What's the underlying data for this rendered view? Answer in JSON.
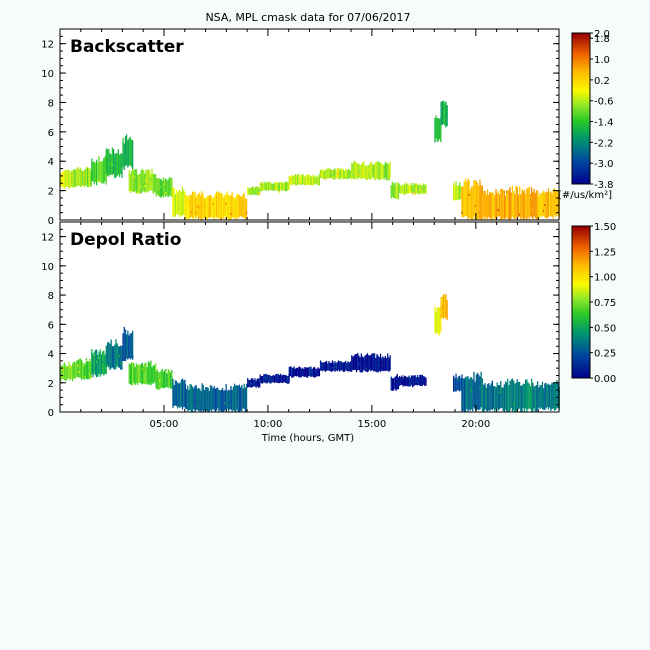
{
  "chart_data": {
    "type": "heatmap",
    "title": "NSA, MPL cmask data for 07/06/2017",
    "xlabel": "Time (hours, GMT)",
    "x_ticks": [
      {
        "value": 5,
        "label": "05:00"
      },
      {
        "value": 10,
        "label": "10:00"
      },
      {
        "value": 15,
        "label": "15:00"
      },
      {
        "value": 20,
        "label": "20:00"
      }
    ],
    "xlim": [
      0,
      24
    ],
    "ylim": [
      0,
      13
    ],
    "y_ticks": [
      0,
      2,
      4,
      6,
      8,
      10,
      12
    ],
    "panels": [
      {
        "label": "Backscatter",
        "colorbar": {
          "range": [
            -3.8,
            2.0
          ],
          "labels": [
            "2.0",
            "1.8",
            "1.0",
            "0.2",
            "-0.6",
            "-1.4",
            "-2.2",
            "-3.0",
            "-3.8"
          ],
          "label_values": [
            2.0,
            1.8,
            1.0,
            0.2,
            -0.6,
            -1.4,
            -2.2,
            -3.0,
            -3.8
          ],
          "unit_label": "[#/us/km²]"
        }
      },
      {
        "label": "Depol Ratio",
        "colorbar": {
          "range": [
            0.0,
            1.5
          ],
          "labels": [
            "1.50",
            "1.25",
            "1.00",
            "0.75",
            "0.50",
            "0.25",
            "0.00"
          ],
          "label_values": [
            1.5,
            1.25,
            1.0,
            0.75,
            0.5,
            0.25,
            0.0
          ]
        }
      }
    ],
    "layers": [
      {
        "x0": 0.0,
        "x1": 0.6,
        "y0": 2.2,
        "y1": 3.2,
        "bs": -0.4,
        "dp": 0.75
      },
      {
        "x0": 0.6,
        "x1": 1.5,
        "y0": 2.3,
        "y1": 3.4,
        "bs": -0.8,
        "dp": 0.7
      },
      {
        "x0": 1.5,
        "x1": 2.2,
        "y0": 2.5,
        "y1": 4.0,
        "bs": -1.2,
        "dp": 0.5
      },
      {
        "x0": 2.2,
        "x1": 3.0,
        "y0": 3.0,
        "y1": 4.6,
        "bs": -1.6,
        "dp": 0.35
      },
      {
        "x0": 3.0,
        "x1": 3.5,
        "y0": 3.6,
        "y1": 5.4,
        "bs": -1.8,
        "dp": 0.25
      },
      {
        "x0": 3.3,
        "x1": 4.6,
        "y0": 1.9,
        "y1": 3.2,
        "bs": -0.9,
        "dp": 0.7
      },
      {
        "x0": 4.6,
        "x1": 5.4,
        "y0": 1.6,
        "y1": 2.7,
        "bs": -1.1,
        "dp": 0.65
      },
      {
        "x0": 5.4,
        "x1": 6.0,
        "y0": 0.3,
        "y1": 1.9,
        "bs": -0.5,
        "dp": 0.3
      },
      {
        "x0": 6.0,
        "x1": 9.0,
        "y0": 0.1,
        "y1": 1.6,
        "bs": 0.2,
        "dp": 0.3
      },
      {
        "x0": 9.0,
        "x1": 9.6,
        "y0": 1.7,
        "y1": 2.2,
        "bs": -0.6,
        "dp": 0.05
      },
      {
        "x0": 9.6,
        "x1": 11.0,
        "y0": 2.0,
        "y1": 2.5,
        "bs": -0.6,
        "dp": 0.05
      },
      {
        "x0": 11.0,
        "x1": 12.5,
        "y0": 2.4,
        "y1": 3.0,
        "bs": -0.6,
        "dp": 0.05
      },
      {
        "x0": 12.5,
        "x1": 14.0,
        "y0": 2.8,
        "y1": 3.4,
        "bs": -0.6,
        "dp": 0.05
      },
      {
        "x0": 14.0,
        "x1": 15.9,
        "y0": 2.8,
        "y1": 3.8,
        "bs": -0.7,
        "dp": 0.05
      },
      {
        "x0": 15.9,
        "x1": 16.3,
        "y0": 1.5,
        "y1": 2.4,
        "bs": -0.7,
        "dp": 0.05
      },
      {
        "x0": 16.3,
        "x1": 17.6,
        "y0": 1.8,
        "y1": 2.4,
        "bs": -0.6,
        "dp": 0.05
      },
      {
        "x0": 18.0,
        "x1": 18.3,
        "y0": 5.4,
        "y1": 7.0,
        "bs": -1.5,
        "dp": 0.9
      },
      {
        "x0": 18.3,
        "x1": 18.6,
        "y0": 6.4,
        "y1": 7.8,
        "bs": -1.7,
        "dp": 1.1
      },
      {
        "x0": 18.9,
        "x1": 19.3,
        "y0": 1.4,
        "y1": 2.4,
        "bs": -0.5,
        "dp": 0.2
      },
      {
        "x0": 19.3,
        "x1": 20.3,
        "y0": 0.1,
        "y1": 2.3,
        "bs": 0.5,
        "dp": 0.3
      },
      {
        "x0": 20.3,
        "x1": 21.5,
        "y0": 0.1,
        "y1": 1.8,
        "bs": 0.5,
        "dp": 0.35
      },
      {
        "x0": 21.5,
        "x1": 23.0,
        "y0": 0.1,
        "y1": 1.9,
        "bs": 0.6,
        "dp": 0.4
      },
      {
        "x0": 23.0,
        "x1": 24.0,
        "y0": 0.2,
        "y1": 1.8,
        "bs": 0.4,
        "dp": 0.35
      }
    ]
  }
}
